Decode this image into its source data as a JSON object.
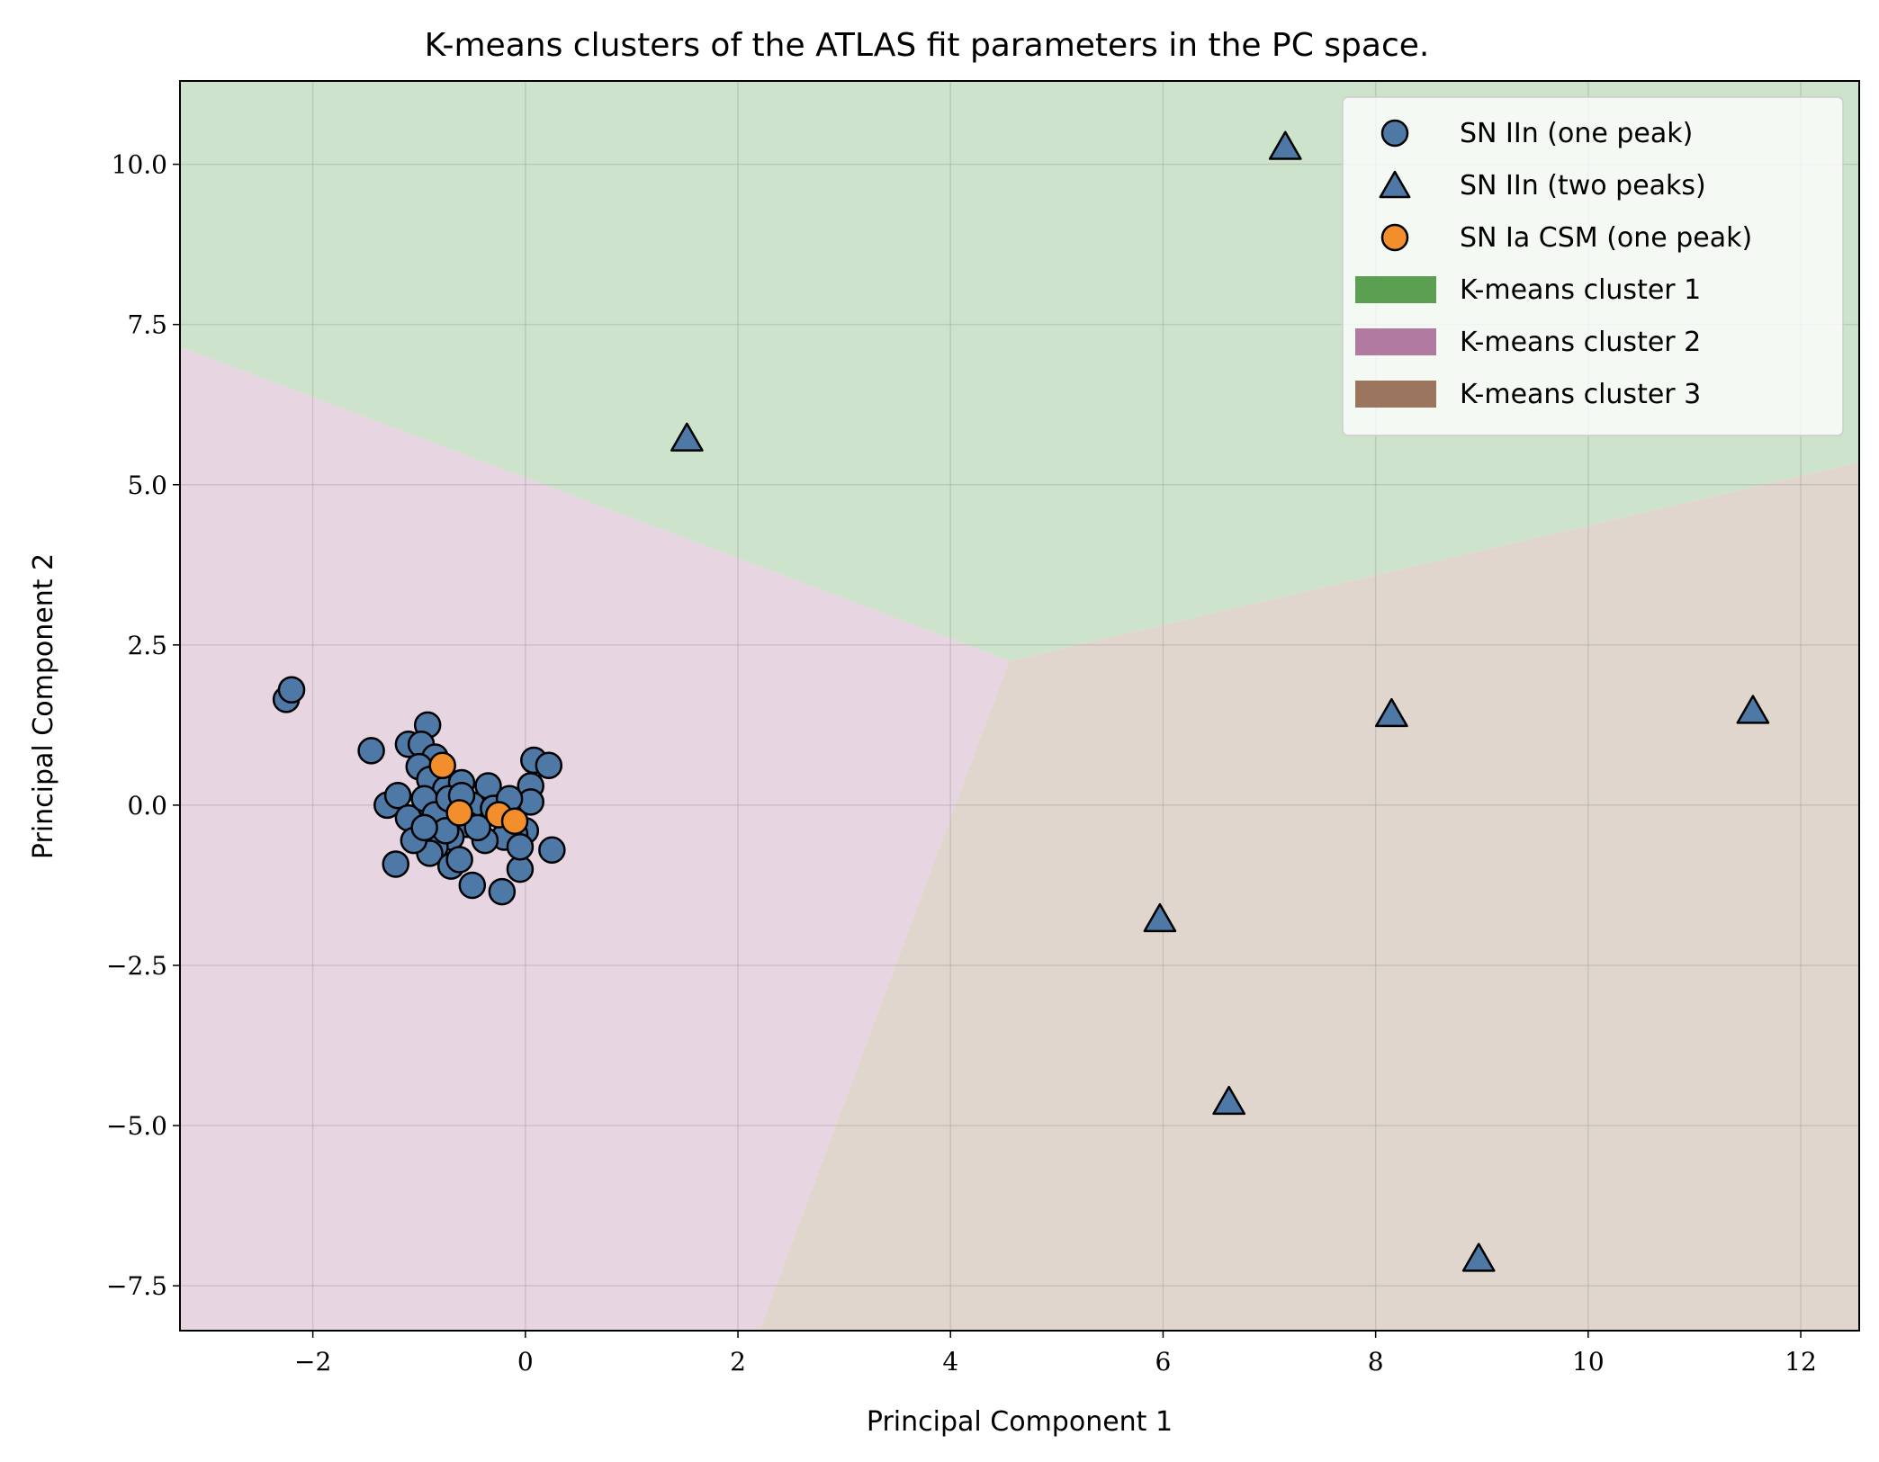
{
  "chart_data": {
    "type": "scatter",
    "title": "K-means clusters of the ATLAS fit parameters in the PC space.",
    "xlabel": "Principal Component 1",
    "ylabel": "Principal Component 2",
    "xlim": [
      -3.25,
      12.55
    ],
    "ylim": [
      -8.2,
      11.3
    ],
    "grid": true,
    "legend_position": "top-right",
    "x_ticks": [
      -2,
      0,
      2,
      4,
      6,
      8,
      10,
      12
    ],
    "x_tick_labels": [
      "−2",
      "0",
      "2",
      "4",
      "6",
      "8",
      "10",
      "12"
    ],
    "y_ticks": [
      -7.5,
      -5.0,
      -2.5,
      0.0,
      2.5,
      5.0,
      7.5,
      10.0
    ],
    "y_tick_labels": [
      "−7.5",
      "−5.0",
      "−2.5",
      "0.0",
      "2.5",
      "5.0",
      "7.5",
      "10.0"
    ],
    "regions": [
      {
        "name": "K-means cluster 1",
        "color": "#5aa050",
        "fill": "#cde3cb",
        "polygon": [
          [
            -3.25,
            7.15
          ],
          [
            4.55,
            2.25
          ],
          [
            12.55,
            5.35
          ],
          [
            12.55,
            11.3
          ],
          [
            -3.25,
            11.3
          ]
        ]
      },
      {
        "name": "K-means cluster 2",
        "color": "#b07aa1",
        "fill": "#e7d5e1",
        "polygon": [
          [
            -3.25,
            -8.2
          ],
          [
            2.2,
            -8.2
          ],
          [
            4.55,
            2.25
          ],
          [
            -3.25,
            7.15
          ]
        ]
      },
      {
        "name": "K-means cluster 3",
        "color": "#9c755f",
        "fill": "#e1d6cd",
        "polygon": [
          [
            2.2,
            -8.2
          ],
          [
            12.55,
            -8.2
          ],
          [
            12.55,
            5.35
          ],
          [
            4.55,
            2.25
          ]
        ]
      }
    ],
    "series": [
      {
        "name": "SN IIn (one peak)",
        "marker": "circle",
        "color": "#4e79a7",
        "points": [
          [
            -2.25,
            1.65
          ],
          [
            -2.2,
            1.8
          ],
          [
            -1.45,
            0.85
          ],
          [
            -1.1,
            0.95
          ],
          [
            -0.92,
            1.25
          ],
          [
            -0.98,
            0.95
          ],
          [
            -0.85,
            0.75
          ],
          [
            -1.0,
            0.6
          ],
          [
            -0.9,
            0.4
          ],
          [
            -0.75,
            0.25
          ],
          [
            -0.6,
            0.35
          ],
          [
            -0.35,
            0.3
          ],
          [
            -0.1,
            0.05
          ],
          [
            0.05,
            0.3
          ],
          [
            0.08,
            0.7
          ],
          [
            0.22,
            0.62
          ],
          [
            0.05,
            0.05
          ],
          [
            -1.3,
            0.0
          ],
          [
            -1.2,
            0.15
          ],
          [
            -1.1,
            -0.2
          ],
          [
            -0.95,
            0.1
          ],
          [
            -0.85,
            -0.15
          ],
          [
            -0.72,
            0.1
          ],
          [
            -0.55,
            -0.1
          ],
          [
            -0.5,
            0.0
          ],
          [
            -0.3,
            -0.05
          ],
          [
            -0.15,
            0.1
          ],
          [
            0.0,
            -0.4
          ],
          [
            -0.1,
            -0.45
          ],
          [
            -0.2,
            -0.5
          ],
          [
            -0.38,
            -0.55
          ],
          [
            -0.55,
            -0.3
          ],
          [
            -0.7,
            -0.5
          ],
          [
            -0.85,
            -0.65
          ],
          [
            -0.9,
            -0.75
          ],
          [
            -1.05,
            -0.55
          ],
          [
            -0.7,
            -0.95
          ],
          [
            -0.62,
            -0.85
          ],
          [
            -0.5,
            -1.25
          ],
          [
            -0.22,
            -1.35
          ],
          [
            -0.05,
            -1.0
          ],
          [
            -0.05,
            -0.65
          ],
          [
            0.25,
            -0.7
          ],
          [
            -1.22,
            -0.92
          ],
          [
            -0.75,
            -0.4
          ],
          [
            -0.45,
            -0.35
          ],
          [
            -0.95,
            -0.35
          ],
          [
            -0.6,
            0.15
          ]
        ]
      },
      {
        "name": "SN IIn (two peaks)",
        "marker": "triangle",
        "color": "#4e79a7",
        "points": [
          [
            7.15,
            10.25
          ],
          [
            1.52,
            5.7
          ],
          [
            8.15,
            1.4
          ],
          [
            11.55,
            1.45
          ],
          [
            5.97,
            -1.8
          ],
          [
            6.62,
            -4.65
          ],
          [
            8.97,
            -7.1
          ]
        ]
      },
      {
        "name": "SN Ia CSM (one peak)",
        "marker": "circle",
        "color": "#f28e2b",
        "points": [
          [
            -0.78,
            0.62
          ],
          [
            -0.62,
            -0.12
          ],
          [
            -0.25,
            -0.15
          ],
          [
            -0.1,
            -0.25
          ]
        ]
      }
    ]
  }
}
